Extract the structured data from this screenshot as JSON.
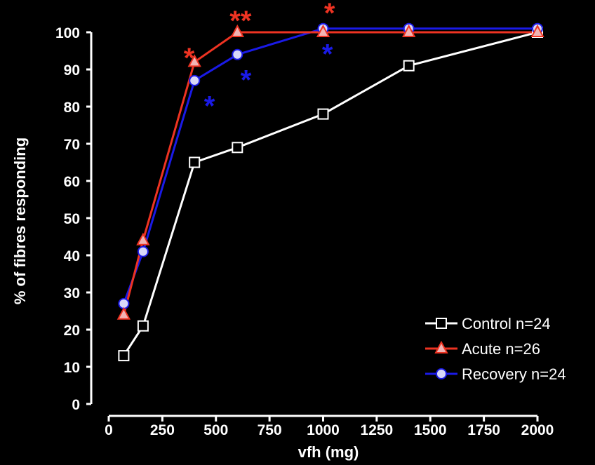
{
  "chart_data": {
    "type": "line",
    "title": "",
    "xlabel": "vfh (mg)",
    "ylabel": "% of fibres responding",
    "xlim": [
      0,
      2000
    ],
    "ylim": [
      0,
      100
    ],
    "xticks": [
      0,
      250,
      500,
      750,
      1000,
      1250,
      1500,
      1750,
      2000
    ],
    "yticks": [
      0,
      10,
      20,
      30,
      40,
      50,
      60,
      70,
      80,
      90,
      100
    ],
    "grid": false,
    "legend_position": "bottom-right",
    "series": [
      {
        "name": "Control n=24",
        "color": "#ffffff",
        "marker": "square",
        "x": [
          70,
          160,
          400,
          600,
          1000,
          1400,
          2000
        ],
        "y": [
          13,
          21,
          65,
          69,
          78,
          91,
          100
        ]
      },
      {
        "name": "Acute n=26",
        "color": "#ee3322",
        "marker": "triangle",
        "x": [
          70,
          160,
          400,
          600,
          1000,
          1400,
          2000
        ],
        "y": [
          24,
          44,
          92,
          100,
          100,
          100,
          100
        ]
      },
      {
        "name": "Recovery n=24",
        "color": "#1a1ae6",
        "marker": "circle",
        "x": [
          70,
          160,
          400,
          600,
          1000,
          1400,
          2000
        ],
        "y": [
          27,
          41,
          87,
          94,
          101,
          101,
          101
        ]
      }
    ],
    "annotations": [
      {
        "text": "*",
        "x": 375,
        "y": 94,
        "color": "#ee3322"
      },
      {
        "text": "**",
        "x": 615,
        "y": 104,
        "color": "#ee3322"
      },
      {
        "text": "*",
        "x": 1030,
        "y": 106,
        "color": "#ee3322"
      },
      {
        "text": "*",
        "x": 470,
        "y": 81,
        "color": "#1a1ae6"
      },
      {
        "text": "*",
        "x": 640,
        "y": 88,
        "color": "#1a1ae6"
      },
      {
        "text": "*",
        "x": 1020,
        "y": 95,
        "color": "#1a1ae6"
      }
    ]
  }
}
